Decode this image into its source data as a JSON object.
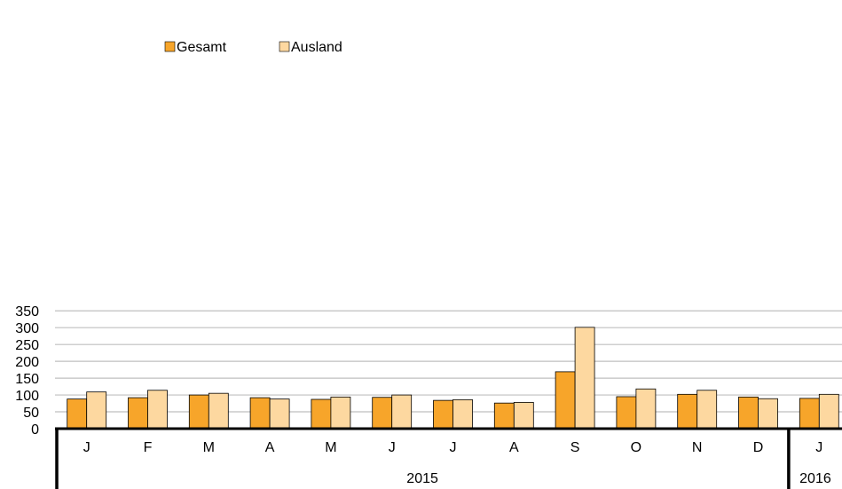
{
  "chart_data": {
    "type": "bar",
    "categories": [
      "J",
      "F",
      "M",
      "A",
      "M",
      "J",
      "J",
      "A",
      "S",
      "O",
      "N",
      "D",
      "J"
    ],
    "groups": [
      {
        "label": "2015",
        "count": 12
      },
      {
        "label": "2016",
        "count": 1
      }
    ],
    "series": [
      {
        "name": "Gesamt",
        "color": "#F7A52A",
        "values": [
          88,
          92,
          100,
          92,
          87,
          93,
          84,
          76,
          169,
          95,
          102,
          94,
          90
        ]
      },
      {
        "name": "Ausland",
        "color": "#FDD8A0",
        "values": [
          109,
          114,
          105,
          88,
          94,
          100,
          86,
          78,
          301,
          118,
          114,
          89,
          102
        ]
      }
    ],
    "ylim": [
      0,
      350
    ],
    "yticks": [
      0,
      50,
      100,
      150,
      200,
      250,
      300,
      350
    ],
    "grid": true,
    "legend_position": "top-left"
  }
}
